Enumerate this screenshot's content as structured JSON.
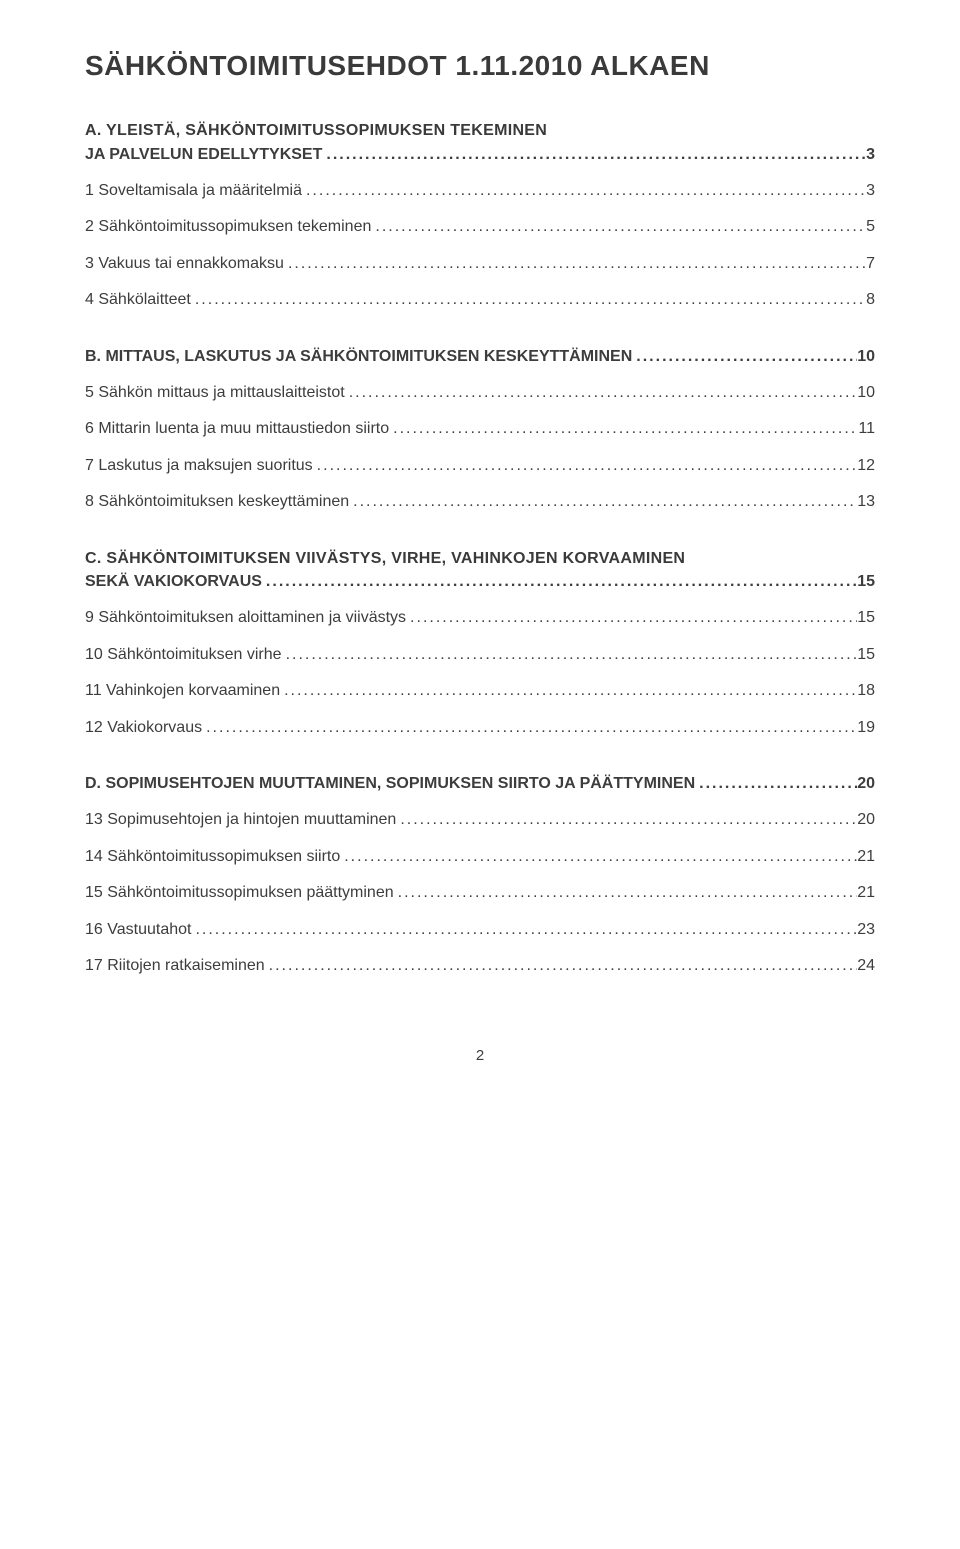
{
  "title": "SÄHKÖNTOIMITUSEHDOT 1.11.2010 ALKAEN",
  "footer_page": "2",
  "dot_fill": "..............................................................................................................................................................",
  "sections": [
    {
      "heading_lines": [
        "A. YLEISTÄ, SÄHKÖNTOIMITUSSOPIMUKSEN TEKEMINEN"
      ],
      "heading_leader": {
        "label": "JA PALVELUN EDELLYTYKSET",
        "page": "3"
      },
      "items": [
        {
          "label": "1 Soveltamisala ja määritelmiä",
          "page": "3"
        },
        {
          "label": "2 Sähköntoimitussopimuksen tekeminen",
          "page": "5"
        },
        {
          "label": "3 Vakuus tai ennakkomaksu",
          "page": "7"
        },
        {
          "label": "4 Sähkölaitteet",
          "page": "8"
        }
      ]
    },
    {
      "heading_leader": {
        "label": "B. MITTAUS, LASKUTUS JA SÄHKÖNTOIMITUKSEN KESKEYTTÄMINEN",
        "page": "10"
      },
      "items": [
        {
          "label": "5 Sähkön mittaus ja mittauslaitteistot",
          "page": "10"
        },
        {
          "label": "6 Mittarin luenta ja muu mittaustiedon siirto",
          "page": "11"
        },
        {
          "label": "7 Laskutus ja maksujen suoritus",
          "page": "12"
        },
        {
          "label": "8 Sähköntoimituksen keskeyttäminen",
          "page": "13"
        }
      ]
    },
    {
      "heading_lines": [
        "C. SÄHKÖNTOIMITUKSEN VIIVÄSTYS, VIRHE, VAHINKOJEN KORVAAMINEN"
      ],
      "heading_leader": {
        "label": "SEKÄ VAKIOKORVAUS",
        "page": "15"
      },
      "items": [
        {
          "label": "9 Sähköntoimituksen aloittaminen ja viivästys",
          "page": "15"
        },
        {
          "label": "10 Sähköntoimituksen virhe",
          "page": "15"
        },
        {
          "label": "11 Vahinkojen korvaaminen",
          "page": "18"
        },
        {
          "label": "12 Vakiokorvaus",
          "page": "19"
        }
      ]
    },
    {
      "heading_leader": {
        "label": "D. SOPIMUSEHTOJEN MUUTTAMINEN, SOPIMUKSEN SIIRTO JA PÄÄTTYMINEN",
        "page": "20"
      },
      "items": [
        {
          "label": "13 Sopimusehtojen ja hintojen muuttaminen",
          "page": "20"
        },
        {
          "label": "14 Sähköntoimitussopimuksen siirto",
          "page": "21"
        },
        {
          "label": "15 Sähköntoimitussopimuksen päättyminen",
          "page": "21"
        },
        {
          "label": "16 Vastuutahot",
          "page": "23"
        },
        {
          "label": "17 Riitojen ratkaiseminen",
          "page": "24"
        }
      ]
    }
  ]
}
